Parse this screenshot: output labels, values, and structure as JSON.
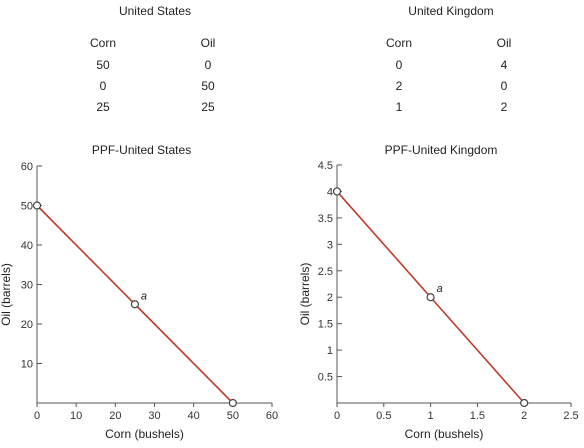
{
  "tables": [
    {
      "title": "United States",
      "headers": [
        "Corn",
        "Oil"
      ],
      "rows": [
        [
          "50",
          "0"
        ],
        [
          "0",
          "50"
        ],
        [
          "25",
          "25"
        ]
      ]
    },
    {
      "title": "United Kingdom",
      "headers": [
        "Corn",
        "Oil"
      ],
      "rows": [
        [
          "0",
          "4"
        ],
        [
          "2",
          "0"
        ],
        [
          "1",
          "2"
        ]
      ]
    }
  ],
  "chart_data": [
    {
      "type": "line",
      "title": "PPF-United States",
      "xlabel": "Corn (bushels)",
      "ylabel": "Oil (barrels)",
      "xlim": [
        0,
        60
      ],
      "ylim": [
        0,
        60
      ],
      "xticks": [
        0,
        10,
        20,
        30,
        40,
        50,
        60
      ],
      "yticks": [
        10,
        20,
        30,
        40,
        50,
        60
      ],
      "x": [
        0,
        25,
        50
      ],
      "y": [
        50,
        25,
        0
      ],
      "point_labels": [
        "",
        "a",
        ""
      ],
      "line_color": "#c0392b",
      "grid": false
    },
    {
      "type": "line",
      "title": "PPF-United Kingdom",
      "xlabel": "Corn (bushels)",
      "ylabel": "Oil (barrels)",
      "xlim": [
        0,
        2.5
      ],
      "ylim": [
        0,
        4.5
      ],
      "xticks": [
        0,
        0.5,
        1,
        1.5,
        2,
        2.5
      ],
      "yticks": [
        0.5,
        1,
        1.5,
        2,
        2.5,
        3,
        3.5,
        4,
        4.5
      ],
      "x": [
        0,
        1,
        2
      ],
      "y": [
        4,
        2,
        0
      ],
      "point_labels": [
        "",
        "a",
        ""
      ],
      "line_color": "#c0392b",
      "grid": false
    }
  ]
}
